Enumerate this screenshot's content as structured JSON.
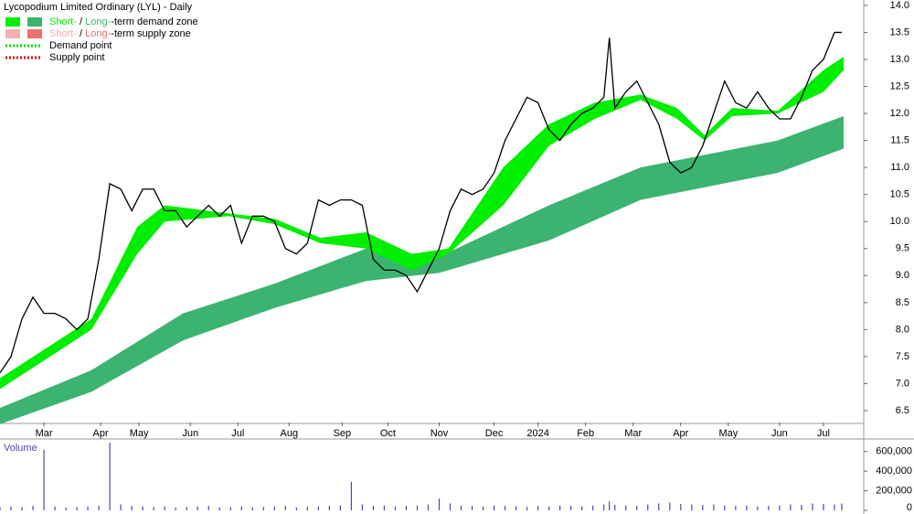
{
  "chart_data": {
    "type": "line",
    "title": "Lycopodium Limited Ordinary (LYL) - Daily",
    "legend": [
      {
        "parts": [
          "Short-",
          " / ",
          "Long-",
          "-term demand zone"
        ],
        "colors": [
          "#00ee00",
          "#3cb371"
        ]
      },
      {
        "parts": [
          "Short-",
          " / ",
          "Long-",
          "-term supply zone"
        ],
        "colors": [
          "#f4b0b0",
          "#f07070"
        ]
      },
      {
        "parts": [
          "Demand point"
        ],
        "colors": [
          "#00dd00"
        ]
      },
      {
        "parts": [
          "Supply point"
        ],
        "colors": [
          "#dd0000"
        ]
      }
    ],
    "xlim": [
      0,
      472
    ],
    "xticks": [
      {
        "value": 24,
        "label": "Mar"
      },
      {
        "value": 55,
        "label": "Apr"
      },
      {
        "value": 76,
        "label": "May"
      },
      {
        "value": 104,
        "label": "Jun"
      },
      {
        "value": 130,
        "label": "Jul"
      },
      {
        "value": 158,
        "label": "Aug"
      },
      {
        "value": 187,
        "label": "Sep"
      },
      {
        "value": 212,
        "label": "Oct"
      },
      {
        "value": 240,
        "label": "Nov"
      },
      {
        "value": 270,
        "label": "Dec"
      },
      {
        "value": 294,
        "label": "2024"
      },
      {
        "value": 320,
        "label": "Feb"
      },
      {
        "value": 346,
        "label": "Mar"
      },
      {
        "value": 372,
        "label": "Apr"
      },
      {
        "value": 398,
        "label": "May"
      },
      {
        "value": 426,
        "label": "Jun"
      },
      {
        "value": 450,
        "label": "Jul"
      }
    ],
    "ylim": [
      6.28,
      14.1
    ],
    "yticks": [
      6.5,
      {
        "value": 7,
        "label": "7.0"
      },
      7.5,
      {
        "value": 8,
        "label": "8.0"
      },
      8.5,
      {
        "value": 9,
        "label": "9.0"
      },
      9.5,
      {
        "value": 10,
        "label": "10.0"
      },
      10.5,
      {
        "value": 11,
        "label": "11.0"
      },
      11.5,
      {
        "value": 12,
        "label": "12.0"
      },
      12.5,
      {
        "value": 13,
        "label": "13.0"
      },
      13.5,
      {
        "value": 14,
        "label": "14.0"
      }
    ],
    "price": {
      "color": "#000000",
      "x": [
        0,
        6,
        12,
        18,
        24,
        30,
        36,
        42,
        48,
        54,
        60,
        66,
        72,
        78,
        84,
        90,
        96,
        102,
        108,
        114,
        120,
        126,
        132,
        138,
        144,
        150,
        156,
        162,
        168,
        174,
        180,
        186,
        192,
        198,
        204,
        210,
        216,
        222,
        228,
        234,
        240,
        246,
        252,
        258,
        264,
        270,
        276,
        282,
        288,
        294,
        300,
        306,
        312,
        318,
        324,
        330,
        333,
        336,
        342,
        348,
        354,
        360,
        366,
        372,
        378,
        384,
        390,
        396,
        402,
        408,
        414,
        420,
        426,
        432,
        438,
        444,
        450,
        456,
        460
      ],
      "values": [
        7.2,
        7.5,
        8.2,
        8.6,
        8.3,
        8.3,
        8.2,
        8.0,
        8.2,
        9.3,
        10.7,
        10.6,
        10.2,
        10.6,
        10.6,
        10.2,
        10.2,
        9.9,
        10.1,
        10.3,
        10.1,
        10.3,
        9.6,
        10.1,
        10.1,
        10.0,
        9.5,
        9.4,
        9.6,
        10.4,
        10.3,
        10.4,
        10.4,
        10.3,
        9.3,
        9.1,
        9.1,
        9.0,
        8.7,
        9.1,
        9.5,
        10.2,
        10.6,
        10.5,
        10.6,
        10.9,
        11.5,
        11.9,
        12.3,
        12.2,
        11.7,
        11.5,
        11.8,
        12.0,
        12.1,
        12.3,
        13.4,
        12.1,
        12.4,
        12.6,
        12.2,
        11.8,
        11.1,
        10.9,
        11.0,
        11.4,
        12.0,
        12.6,
        12.2,
        12.1,
        12.4,
        12.1,
        11.9,
        11.9,
        12.3,
        12.8,
        13.0,
        13.5,
        13.5
      ]
    },
    "bands": [
      {
        "color": "#3cb371",
        "x": [
          0,
          50,
          100,
          150,
          200,
          240,
          300,
          350,
          380,
          425,
          461
        ],
        "lower": [
          6.25,
          6.85,
          7.8,
          8.4,
          8.9,
          9.05,
          9.65,
          10.4,
          10.6,
          10.9,
          11.35
        ],
        "upper": [
          6.55,
          7.25,
          8.3,
          8.85,
          9.5,
          9.35,
          10.3,
          11.0,
          11.2,
          11.5,
          11.95
        ]
      },
      {
        "color": "#00ee00",
        "x": [
          0,
          50,
          75,
          90,
          125,
          150,
          175,
          200,
          225,
          245,
          275,
          300,
          325,
          350,
          370,
          385,
          400,
          425,
          450,
          461
        ],
        "lower": [
          6.9,
          8.0,
          9.4,
          10.0,
          10.1,
          9.95,
          9.6,
          9.5,
          9.1,
          9.4,
          10.3,
          11.4,
          11.9,
          12.25,
          11.9,
          11.5,
          11.95,
          12.0,
          12.4,
          12.8
        ],
        "upper": [
          7.1,
          8.2,
          9.9,
          10.3,
          10.15,
          10.05,
          9.7,
          9.8,
          9.4,
          9.5,
          11.0,
          11.8,
          12.2,
          12.35,
          12.1,
          11.6,
          12.1,
          12.05,
          12.8,
          13.05
        ]
      }
    ],
    "volume": {
      "label": "Volume",
      "color": "#5a3fb0",
      "ylim": [
        0,
        700000
      ],
      "yticks": [
        {
          "value": 0,
          "label": "0"
        },
        {
          "value": 200000,
          "label": "200,000"
        },
        {
          "value": 400000,
          "label": "400,000"
        },
        {
          "value": 600000,
          "label": "600,000"
        }
      ],
      "values": [
        30000,
        40000,
        35000,
        45000,
        620000,
        40000,
        30000,
        35000,
        40000,
        50000,
        690000,
        60000,
        45000,
        40000,
        35000,
        40000,
        30000,
        35000,
        40000,
        45000,
        30000,
        35000,
        40000,
        30000,
        35000,
        40000,
        45000,
        30000,
        35000,
        40000,
        45000,
        50000,
        290000,
        60000,
        45000,
        50000,
        40000,
        45000,
        50000,
        60000,
        120000,
        70000,
        50000,
        45000,
        40000,
        50000,
        45000,
        40000,
        35000,
        45000,
        40000,
        50000,
        45000,
        40000,
        50000,
        60000,
        90000,
        55000,
        50000,
        45000,
        60000,
        70000,
        80000,
        65000,
        60000,
        55000,
        60000,
        50000,
        45000,
        50000,
        40000,
        45000,
        50000,
        60000,
        55000,
        70000,
        65000,
        60000,
        70000
      ]
    }
  }
}
